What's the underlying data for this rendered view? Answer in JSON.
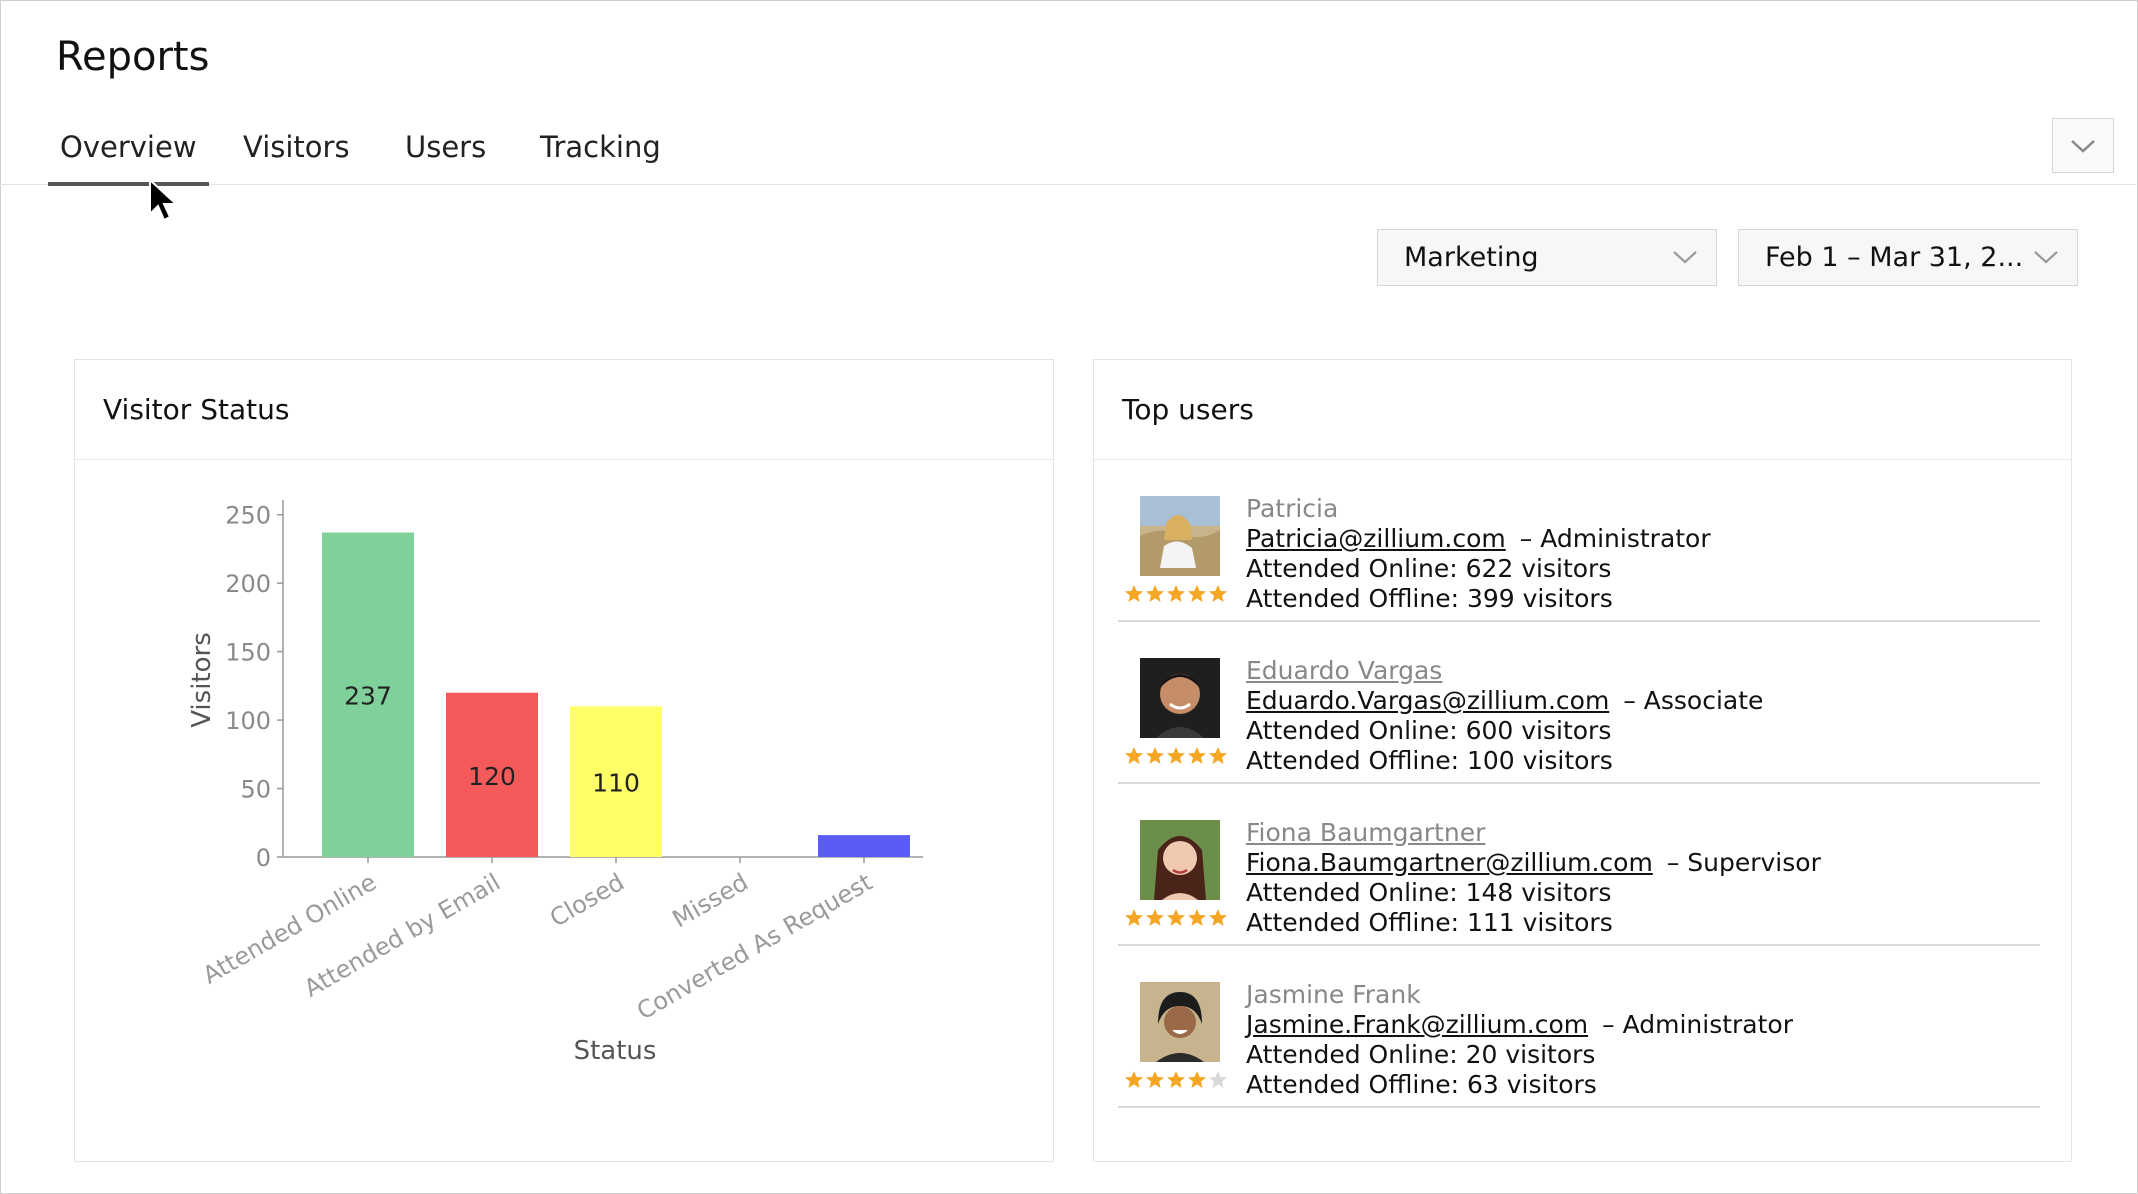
{
  "header": {
    "title": "Reports"
  },
  "tabs": [
    {
      "label": "Overview",
      "active": true
    },
    {
      "label": "Visitors",
      "active": false
    },
    {
      "label": "Users",
      "active": false
    },
    {
      "label": "Tracking",
      "active": false
    }
  ],
  "filters": {
    "department": "Marketing",
    "date_range": "Feb 1 – Mar 31, 2..."
  },
  "visitor_status_panel": {
    "title": "Visitor Status"
  },
  "chart_data": {
    "type": "bar",
    "title": "",
    "xlabel": "Status",
    "ylabel": "Visitors",
    "categories": [
      "Attended Online",
      "Attended by Email",
      "Closed",
      "Missed",
      "Converted As Request"
    ],
    "values": [
      237,
      120,
      110,
      0,
      16
    ],
    "value_labels": [
      "237",
      "120",
      "110",
      "",
      ""
    ],
    "colors": [
      "#7fd09a",
      "#f55a5a",
      "#ffff66",
      "#ffffff",
      "#5b5bf5"
    ],
    "yticks": [
      "0",
      "50",
      "100",
      "150",
      "200",
      "250"
    ],
    "ylim": [
      0,
      260
    ],
    "grid": false,
    "legend": "none"
  },
  "top_users_panel": {
    "title": "Top users"
  },
  "users": [
    {
      "name": "Patricia",
      "email": "Patricia@zillium.com",
      "role": "– Administrator",
      "online": "Attended Online: 622 visitors",
      "offline": "Attended Offline: 399 visitors",
      "rating": 5,
      "name_link": false
    },
    {
      "name": "Eduardo Vargas",
      "email": "Eduardo.Vargas@zillium.com",
      "role": "– Associate",
      "online": "Attended Online: 600 visitors",
      "offline": "Attended Offline: 100 visitors",
      "rating": 5,
      "name_link": true
    },
    {
      "name": "Fiona Baumgartner",
      "email": "Fiona.Baumgartner@zillium.com",
      "role": "– Supervisor",
      "online": "Attended Online: 148 visitors",
      "offline": "Attended Offline: 111 visitors",
      "rating": 5,
      "name_link": true
    },
    {
      "name": "Jasmine Frank",
      "email": "Jasmine.Frank@zillium.com",
      "role": "– Administrator",
      "online": "Attended Online: 20 visitors",
      "offline": "Attended Offline: 63 visitors",
      "rating": 4,
      "name_link": false
    }
  ],
  "colors": {
    "star": "#f5a623",
    "star_empty": "#d9d9d9",
    "accent_underline": "#555555"
  },
  "icons": {
    "collapse": "chevron-down-icon",
    "cursor": "mouse-pointer-icon"
  }
}
